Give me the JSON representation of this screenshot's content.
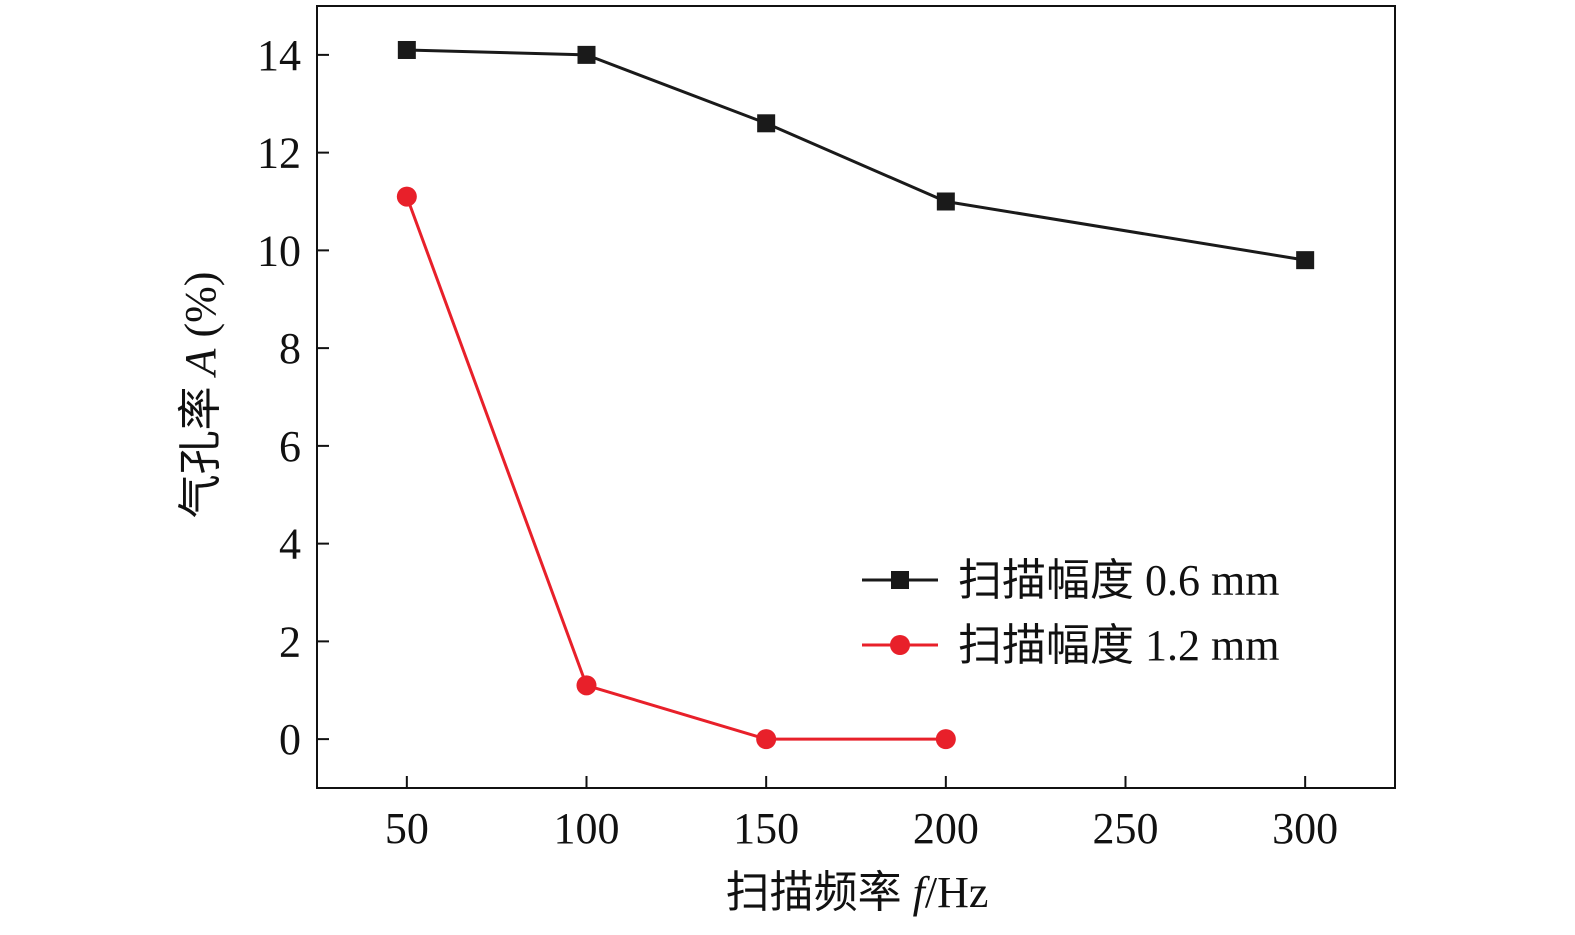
{
  "chart_data": {
    "type": "line",
    "xlabel": {
      "prefix": "扫描频率 ",
      "var": "f",
      "suffix": "/Hz"
    },
    "ylabel": {
      "prefix": "气孔率 ",
      "var": "A",
      "suffix": " (%)"
    },
    "xlim": [
      25,
      325
    ],
    "ylim": [
      -1,
      15
    ],
    "xticks": [
      50,
      100,
      150,
      200,
      250,
      300
    ],
    "yticks": [
      0,
      2,
      4,
      6,
      8,
      10,
      12,
      14
    ],
    "grid": false,
    "legend_position": "bottom-right",
    "series": [
      {
        "name": "扫描幅度 0.6 mm",
        "marker": "square",
        "color": "#1a1a1a",
        "x": [
          50,
          100,
          150,
          200,
          300
        ],
        "y": [
          14.1,
          14.0,
          12.6,
          11.0,
          9.8
        ]
      },
      {
        "name": "扫描幅度 1.2 mm",
        "marker": "circle",
        "color": "#e8202a",
        "x": [
          50,
          100,
          150,
          200
        ],
        "y": [
          11.1,
          1.1,
          0.0,
          0.0
        ]
      }
    ]
  }
}
